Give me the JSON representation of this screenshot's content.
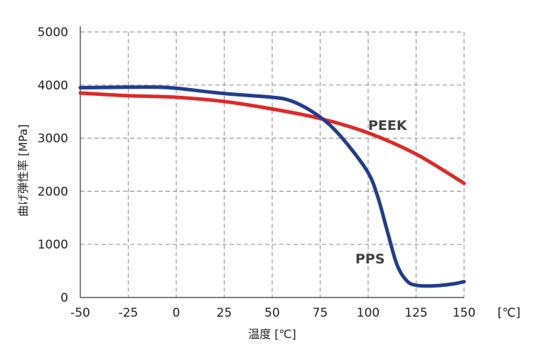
{
  "chart_data": {
    "type": "line",
    "xlabel": "温度 [℃]",
    "ylabel": "曲げ弾性率 [MPa]",
    "x_unit_label": "[℃]",
    "xlim": [
      -50,
      150
    ],
    "ylim": [
      0,
      5000
    ],
    "x_ticks": [
      -50,
      -25,
      0,
      25,
      50,
      75,
      100,
      125,
      150
    ],
    "y_ticks": [
      0,
      1000,
      2000,
      3000,
      4000,
      5000
    ],
    "grid": true,
    "series": [
      {
        "name": "PEEK",
        "color": "#dd2a2a",
        "x": [
          -50,
          -25,
          0,
          25,
          50,
          75,
          100,
          125,
          150
        ],
        "y": [
          3850,
          3800,
          3770,
          3690,
          3550,
          3370,
          3100,
          2700,
          2150
        ]
      },
      {
        "name": "PPS",
        "color": "#223c8c",
        "x": [
          -50,
          -25,
          -10,
          0,
          25,
          50,
          60,
          70,
          80,
          90,
          100,
          105,
          110,
          115,
          120,
          125,
          135,
          145,
          150
        ],
        "y": [
          3950,
          3960,
          3960,
          3940,
          3840,
          3770,
          3700,
          3520,
          3250,
          2850,
          2350,
          1900,
          1250,
          620,
          320,
          230,
          220,
          260,
          300
        ]
      }
    ]
  }
}
